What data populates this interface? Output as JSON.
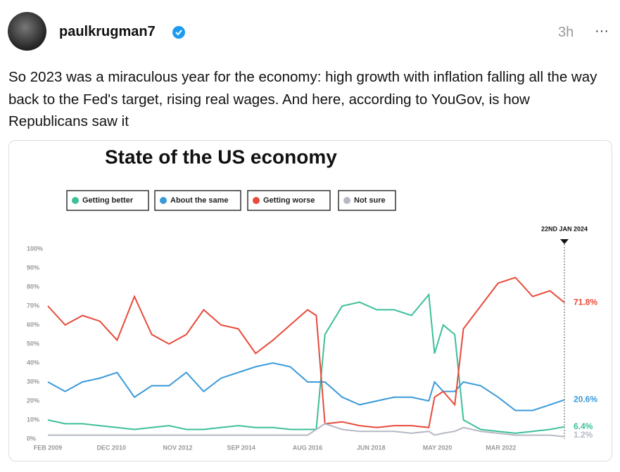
{
  "post": {
    "author": "paulkrugman7",
    "time": "3h",
    "more": "···",
    "text": "So 2023 was a miraculous year for the economy: high growth with inflation falling all the way back to the Fed's target, rising real wages. And here, according to YouGov, is how Republicans saw it"
  },
  "chart_data": {
    "type": "line",
    "title": "State of the US economy",
    "annotation": "22ND JAN 2024",
    "x": [
      "2009-02",
      "2009-08",
      "2010-02",
      "2010-08",
      "2011-02",
      "2011-08",
      "2012-02",
      "2012-08",
      "2013-02",
      "2013-08",
      "2014-02",
      "2014-08",
      "2015-02",
      "2015-08",
      "2016-02",
      "2016-08",
      "2016-11",
      "2017-02",
      "2017-08",
      "2018-02",
      "2018-08",
      "2019-02",
      "2019-08",
      "2020-02",
      "2020-04",
      "2020-07",
      "2020-11",
      "2021-02",
      "2021-08",
      "2022-02",
      "2022-08",
      "2023-02",
      "2023-08",
      "2024-01"
    ],
    "xlim": [
      "2009-02",
      "2024-01"
    ],
    "xticks": [
      {
        "value": "2009-02",
        "label": "FEB 2009"
      },
      {
        "value": "2010-12",
        "label": "DEC 2010"
      },
      {
        "value": "2012-11",
        "label": "NOV 2012"
      },
      {
        "value": "2014-09",
        "label": "SEP 2014"
      },
      {
        "value": "2016-08",
        "label": "AUG 2016"
      },
      {
        "value": "2018-06",
        "label": "JUN 2018"
      },
      {
        "value": "2020-05",
        "label": "MAY 2020"
      },
      {
        "value": "2022-03",
        "label": "MAR 2022"
      }
    ],
    "ylim": [
      0,
      100
    ],
    "yticks": [
      {
        "value": 0,
        "label": "0%"
      },
      {
        "value": 10,
        "label": "10%"
      },
      {
        "value": 20,
        "label": "20%"
      },
      {
        "value": 30,
        "label": "30%"
      },
      {
        "value": 40,
        "label": "40%"
      },
      {
        "value": 50,
        "label": "50%"
      },
      {
        "value": 60,
        "label": "60%"
      },
      {
        "value": 70,
        "label": "70%"
      },
      {
        "value": 80,
        "label": "80%"
      },
      {
        "value": 90,
        "label": "90%"
      },
      {
        "value": 100,
        "label": "100%"
      }
    ],
    "series": [
      {
        "name": "Getting better",
        "color": "#3dbf9a",
        "values": [
          10,
          8,
          8,
          7,
          6,
          5,
          6,
          7,
          5,
          5,
          6,
          7,
          6,
          6,
          5,
          5,
          5,
          55,
          70,
          72,
          68,
          68,
          65,
          76,
          45,
          60,
          55,
          10,
          5,
          4,
          3,
          4,
          5,
          6.4
        ],
        "value_labels": [
          null,
          null,
          null,
          null,
          null,
          null,
          null,
          null,
          null,
          null,
          null,
          null,
          null,
          null,
          null,
          null,
          null,
          null,
          null,
          null,
          null,
          null,
          null,
          null,
          null,
          null,
          null,
          null,
          null,
          null,
          null,
          null,
          null,
          "6.4%"
        ]
      },
      {
        "name": "About the same",
        "color": "#3a9ad9",
        "values": [
          30,
          25,
          30,
          32,
          35,
          22,
          28,
          28,
          35,
          25,
          32,
          35,
          38,
          40,
          38,
          30,
          30,
          30,
          22,
          18,
          20,
          22,
          22,
          20,
          30,
          25,
          25,
          30,
          28,
          22,
          15,
          15,
          18,
          20.6
        ],
        "value_labels": [
          null,
          null,
          null,
          null,
          null,
          null,
          null,
          null,
          null,
          null,
          null,
          null,
          null,
          null,
          null,
          null,
          null,
          null,
          null,
          null,
          null,
          null,
          null,
          null,
          null,
          null,
          null,
          null,
          null,
          null,
          null,
          null,
          null,
          "20.6%"
        ]
      },
      {
        "name": "Getting worse",
        "color": "#e84a3a",
        "values": [
          70,
          60,
          65,
          62,
          52,
          75,
          55,
          50,
          55,
          68,
          60,
          58,
          45,
          52,
          60,
          68,
          65,
          8,
          9,
          7,
          6,
          7,
          7,
          6,
          22,
          25,
          18,
          58,
          70,
          82,
          85,
          75,
          78,
          71.8
        ],
        "value_labels": [
          null,
          null,
          null,
          null,
          null,
          null,
          null,
          null,
          null,
          null,
          null,
          null,
          null,
          null,
          null,
          null,
          null,
          null,
          null,
          null,
          null,
          null,
          null,
          null,
          null,
          null,
          null,
          null,
          null,
          null,
          null,
          null,
          null,
          "71.8%"
        ]
      },
      {
        "name": "Not sure",
        "color": "#b5b9c4",
        "values": [
          2,
          2,
          2,
          2,
          2,
          2,
          2,
          2,
          2,
          2,
          2,
          2,
          2,
          2,
          2,
          2,
          5,
          8,
          5,
          4,
          4,
          4,
          3,
          4,
          2,
          3,
          4,
          6,
          4,
          3,
          2,
          2,
          2,
          1.2
        ],
        "value_labels": [
          null,
          null,
          null,
          null,
          null,
          null,
          null,
          null,
          null,
          null,
          null,
          null,
          null,
          null,
          null,
          null,
          null,
          null,
          null,
          null,
          null,
          null,
          null,
          null,
          null,
          null,
          null,
          null,
          null,
          null,
          null,
          null,
          null,
          "1.2%"
        ]
      }
    ]
  }
}
